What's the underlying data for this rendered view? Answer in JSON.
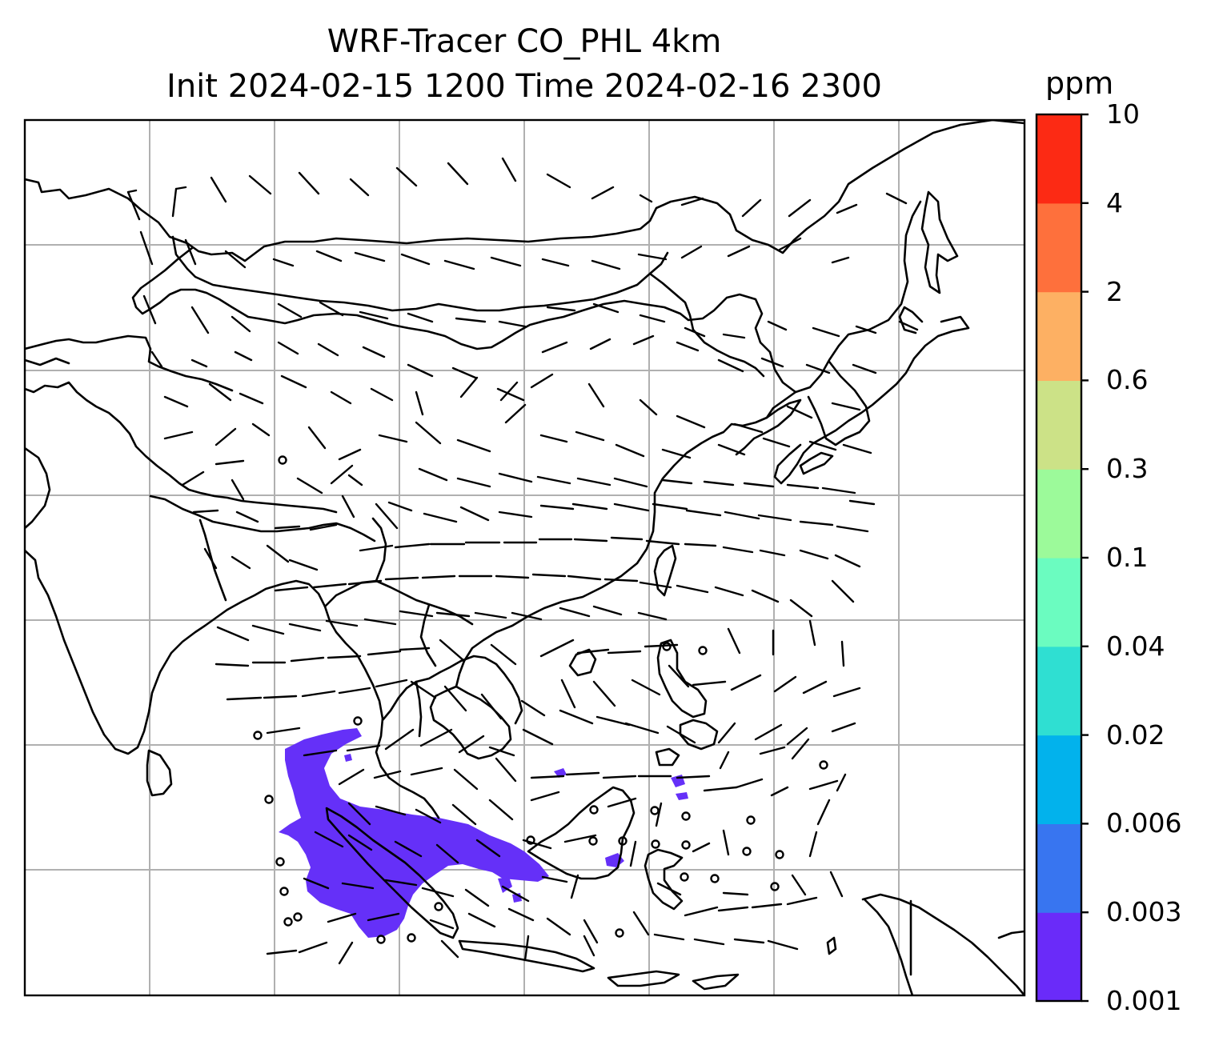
{
  "title_line1": "WRF-Tracer CO_PHL 4km",
  "title_line2": "Init 2024-02-15 1200 Time 2024-02-16 2300",
  "colorbar": {
    "unit": "ppm",
    "ticks": [
      "0.001",
      "0.003",
      "0.006",
      "0.02",
      "0.04",
      "0.1",
      "0.3",
      "0.6",
      "2",
      "4",
      "10"
    ],
    "colors": [
      "#6a2bf9",
      "#3875f0",
      "#02b2ec",
      "#2fdfd2",
      "#6bfcc0",
      "#9cfa9a",
      "#cce287",
      "#fdb063",
      "#fe703c",
      "#fc2a14"
    ]
  },
  "map": {
    "grid": true,
    "tracer_plume_color": "#6530f8",
    "coastline_color": "#000000",
    "wind_barbs": true
  }
}
